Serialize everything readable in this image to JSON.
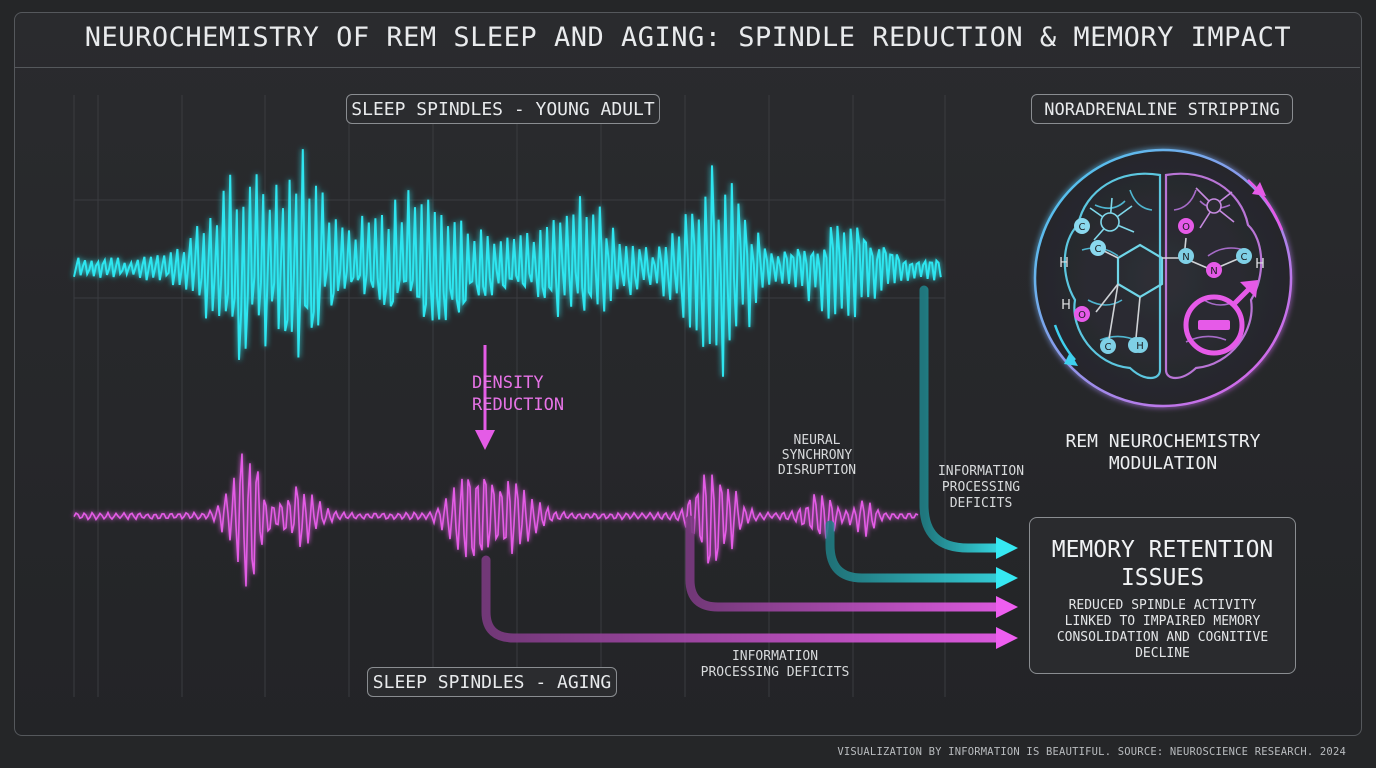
{
  "title": "NEUROCHEMISTRY OF REM SLEEP AND AGING: SPINDLE REDUCTION & MEMORY IMPACT",
  "labels": {
    "young": "SLEEP SPINDLES - YOUNG ADULT",
    "aging": "SLEEP SPINDLES - AGING",
    "density_reduction": "DENSITY\nREDUCTION",
    "neural_synchrony": "NEURAL\nSYNCHRONY\nDISRUPTION",
    "info_deficits_right": "INFORMATION\nPROCESSING\nDEFICITS",
    "info_deficits_bottom": "INFORMATION\nPROCESSING DEFICITS",
    "noradrenaline": "NORADRENALINE STRIPPING",
    "rem_modulation": "REM NEUROCHEMISTRY\nMODULATION"
  },
  "memory_box": {
    "title": "MEMORY RETENTION\nISSUES",
    "description": "REDUCED SPINDLE ACTIVITY\nLINKED TO IMPAIRED MEMORY\nCONSOLIDATION AND COGNITIVE\nDECLINE"
  },
  "molecule_atoms": [
    "C",
    "C",
    "C",
    "N",
    "N",
    "O",
    "O",
    "H",
    "H",
    "H",
    "H",
    "C",
    "H"
  ],
  "footer": "VISUALIZATION BY INFORMATION IS BEAUTIFUL. SOURCE: NEUROSCIENCE RESEARCH. 2024",
  "colors": {
    "background": "#252628",
    "cyan": "#2ee6f0",
    "magenta": "#e45ce6",
    "frame": "#55585c"
  }
}
